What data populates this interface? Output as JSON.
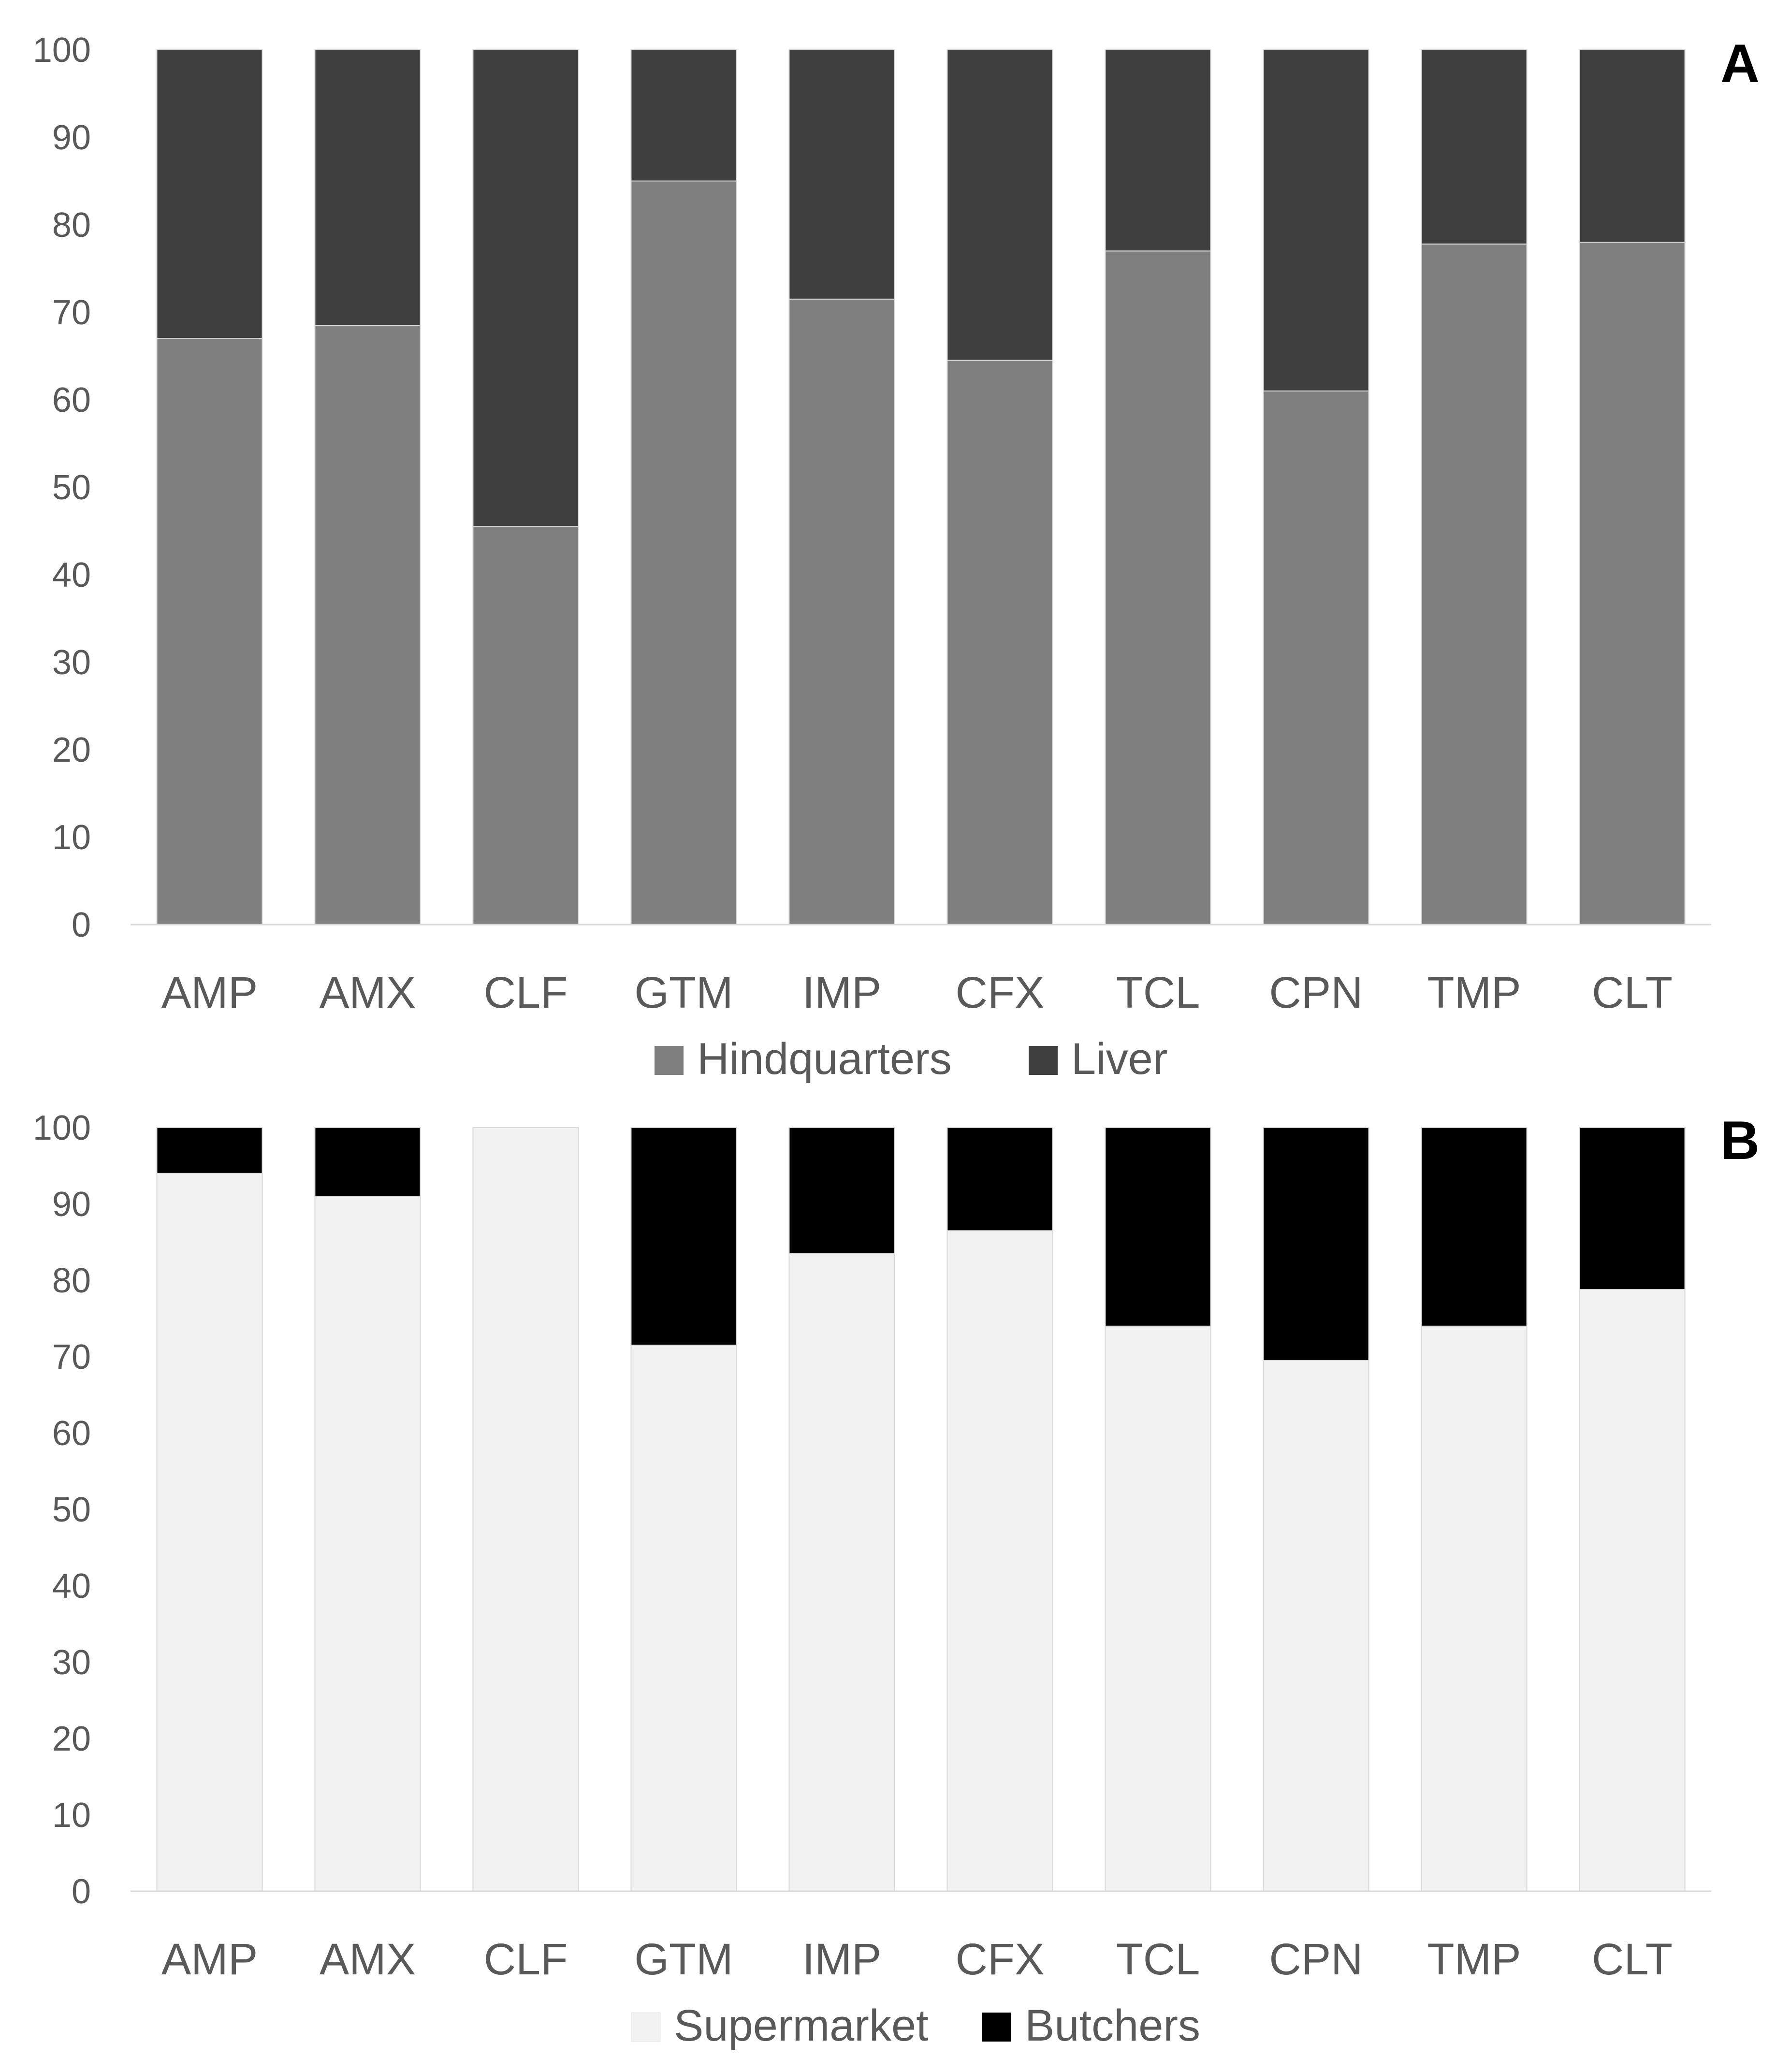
{
  "chart_data": [
    {
      "type": "bar",
      "stacked": true,
      "panel_label": "A",
      "title": "",
      "xlabel": "",
      "ylabel": "",
      "ylim": [
        0,
        100
      ],
      "yticks": [
        "0",
        "10",
        "20",
        "30",
        "40",
        "50",
        "60",
        "70",
        "80",
        "90",
        "100"
      ],
      "grid": false,
      "legend_position": "bottom",
      "categories": [
        "AMP",
        "AMX",
        "CLF",
        "GTM",
        "IMP",
        "CFX",
        "TCL",
        "CPN",
        "TMP",
        "CLT"
      ],
      "series": [
        {
          "name": "Hindquarters",
          "color": "#7f7f7f",
          "values": [
            67,
            68.5,
            45.5,
            85,
            71.5,
            64.5,
            77,
            61,
            77.8,
            78
          ]
        },
        {
          "name": "Liver",
          "color": "#3f3f3f",
          "values": [
            33,
            31.5,
            54.5,
            15,
            28.5,
            35.5,
            23,
            39,
            22.2,
            22
          ]
        }
      ]
    },
    {
      "type": "bar",
      "stacked": true,
      "panel_label": "B",
      "title": "",
      "xlabel": "",
      "ylabel": "",
      "ylim": [
        0,
        100
      ],
      "yticks": [
        "0",
        "10",
        "20",
        "30",
        "40",
        "50",
        "60",
        "70",
        "80",
        "90",
        "100"
      ],
      "grid": false,
      "legend_position": "bottom",
      "categories": [
        "AMP",
        "AMX",
        "CLF",
        "GTM",
        "IMP",
        "CFX",
        "TCL",
        "CPN",
        "TMP",
        "CLT"
      ],
      "series": [
        {
          "name": "Supermarket",
          "color": "#f2f2f2",
          "values": [
            94,
            91,
            100,
            71.5,
            83.5,
            86.5,
            74,
            69.5,
            74,
            78.8
          ]
        },
        {
          "name": "Butchers",
          "color": "#000000",
          "values": [
            6,
            9,
            0,
            28.5,
            16.5,
            13.5,
            26,
            30.5,
            26,
            21.2
          ]
        }
      ]
    }
  ]
}
